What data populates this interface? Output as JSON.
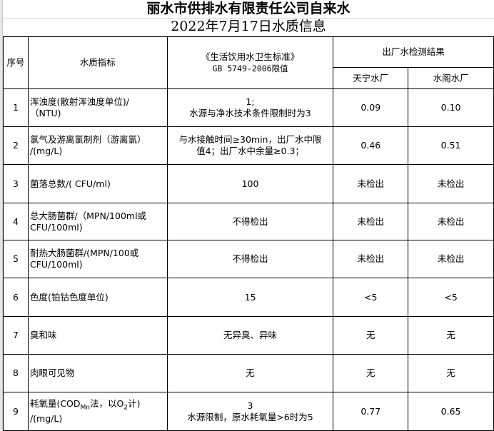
{
  "title_line1": "丽水市供排水有限责任公司自来水",
  "title_line2": "2022年7月17日水质信息",
  "header": {
    "seq": "序号",
    "indicator": "水质指标",
    "standard_line1": "《生活饮用水卫生标准》",
    "standard_line2": "GB 5749-2006限值",
    "results": "出厂水检测结果",
    "plant1": "天宁水厂",
    "plant2": "水阁水厂"
  },
  "rows": [
    {
      "no": "1",
      "ind_a": "浑浊度(散射浑浊度单位)/",
      "ind_b": "（NTU)",
      "std_a": "1;",
      "std_b": "水源与净水技术条件限制时为3",
      "p1": "0.09",
      "p2": "0.10"
    },
    {
      "no": "2",
      "ind_a": "氯气及游离氯制剂（游离氯）",
      "ind_b": "/(mg/L)",
      "std_a": "与水接触时间≥30min，出厂水中限",
      "std_b": "值4；出厂水中余量≥0.3；",
      "p1": "0.46",
      "p2": "0.51"
    },
    {
      "no": "3",
      "ind_a": "菌落总数/( CFU/ml)",
      "ind_b": "",
      "std_a": "100",
      "std_b": "",
      "p1": "未检出",
      "p2": "未检出"
    },
    {
      "no": "4",
      "ind_a": "总大肠菌群/（MPN/100ml或",
      "ind_b": "CFU/100ml)",
      "std_a": "不得检出",
      "std_b": "",
      "p1": "未检出",
      "p2": "未检出"
    },
    {
      "no": "5",
      "ind_a": "耐热大肠菌群/(MPN/100或",
      "ind_b": "CFU/100ml)",
      "std_a": "不得检出",
      "std_b": "",
      "p1": "未检出",
      "p2": "未检出"
    },
    {
      "no": "6",
      "ind_a": "色度(铂钴色度单位)",
      "ind_b": "",
      "std_a": "15",
      "std_b": "",
      "p1": "<5",
      "p2": "<5"
    },
    {
      "no": "7",
      "ind_a": "臭和味",
      "ind_b": "",
      "std_a": "无异臭、异味",
      "std_b": "",
      "p1": "无",
      "p2": "无"
    },
    {
      "no": "8",
      "ind_a": "肉眼可见物",
      "ind_b": "",
      "std_a": "无",
      "std_b": "",
      "p1": "无",
      "p2": "无"
    }
  ],
  "row9": {
    "no": "9",
    "ind_pre": "耗氧量(COD",
    "ind_sub1": "Mn",
    "ind_mid": "法，以O",
    "ind_sub2": "2",
    "ind_post": "计)",
    "ind_b": "/(mg/L)",
    "std_a": "3",
    "std_b": "水源限制，原水耗氧量>6时为5",
    "p1": "0.77",
    "p2": "0.65"
  }
}
